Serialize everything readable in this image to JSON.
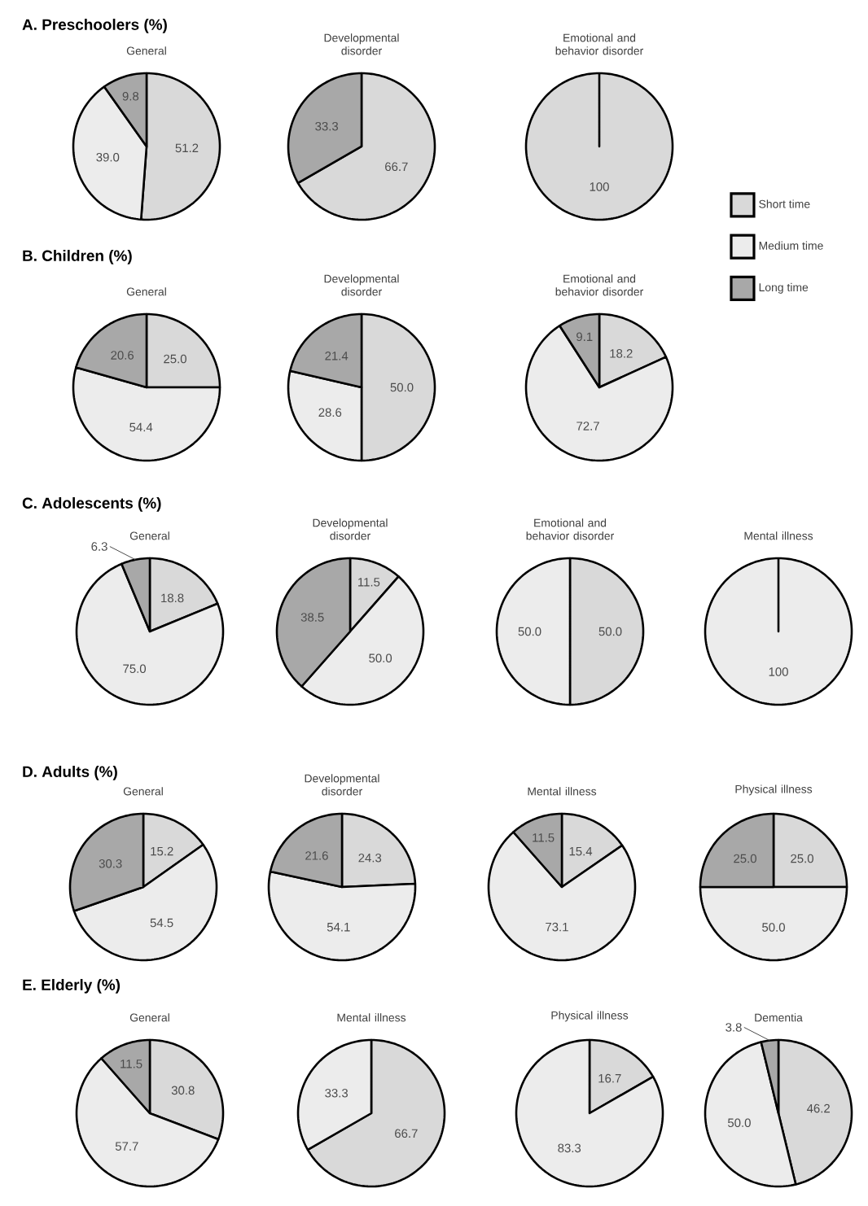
{
  "chart_data": [
    {
      "type": "pie",
      "title": "General",
      "annotations": [
        "A. Preschoolers (%)"
      ],
      "values": [
        51.2,
        39.0,
        9.8
      ],
      "colors": [
        "#d9d9d9",
        "#ececec",
        "#a8a8a8"
      ],
      "value_labels": [
        "51.2",
        "39.0",
        "9.8"
      ]
    },
    {
      "type": "pie",
      "title": "Developmental disorder",
      "values": [
        66.7,
        0,
        33.3
      ],
      "colors": [
        "#d9d9d9",
        "#ececec",
        "#a8a8a8"
      ],
      "value_labels": [
        "66.7",
        null,
        "33.3"
      ]
    },
    {
      "type": "pie",
      "title": "Emotional and behavior disorder",
      "categories": [
        "Short time",
        "Medium time",
        "Long time"
      ],
      "legend": "right",
      "values": [
        100,
        0,
        0
      ],
      "colors": [
        "#d9d9d9",
        "#ececec",
        "#a8a8a8"
      ],
      "value_labels": [
        "100",
        null,
        null
      ]
    },
    {
      "type": "pie",
      "title": "General",
      "annotations": [
        "B. Children (%)"
      ],
      "values": [
        25.0,
        54.4,
        20.6
      ],
      "colors": [
        "#d9d9d9",
        "#ececec",
        "#a8a8a8"
      ],
      "value_labels": [
        "25.0",
        "54.4",
        "20.6"
      ]
    },
    {
      "type": "pie",
      "title": "Developmental disorder",
      "values": [
        50.0,
        28.6,
        21.4
      ],
      "colors": [
        "#d9d9d9",
        "#ececec",
        "#a8a8a8"
      ],
      "value_labels": [
        "50.0",
        "28.6",
        "21.4"
      ]
    },
    {
      "type": "pie",
      "title": "Emotional and behavior disorder",
      "values": [
        18.2,
        72.7,
        9.1
      ],
      "colors": [
        "#d9d9d9",
        "#ececec",
        "#a8a8a8"
      ],
      "value_labels": [
        "18.2",
        "72.7",
        "9.1"
      ]
    },
    {
      "type": "pie",
      "title": "General",
      "annotations": [
        "C. Adolescents (%)"
      ],
      "values": [
        18.8,
        75.0,
        6.3
      ],
      "colors": [
        "#d9d9d9",
        "#ececec",
        "#a8a8a8"
      ],
      "value_labels": [
        "18.8",
        "75.0",
        "6.3"
      ]
    },
    {
      "type": "pie",
      "title": "Developmental disorder",
      "values": [
        11.5,
        50.0,
        38.5
      ],
      "colors": [
        "#d9d9d9",
        "#ececec",
        "#a8a8a8"
      ],
      "value_labels": [
        "11.5",
        "50.0",
        "38.5"
      ]
    },
    {
      "type": "pie",
      "title": "Emotional and behavior disorder",
      "values": [
        50.0,
        50.0,
        0
      ],
      "colors": [
        "#d9d9d9",
        "#ececec",
        "#a8a8a8"
      ],
      "value_labels": [
        "50.0",
        "50.0",
        null
      ]
    },
    {
      "type": "pie",
      "title": "Mental illness",
      "values": [
        0,
        100,
        0
      ],
      "colors": [
        "#d9d9d9",
        "#ececec",
        "#a8a8a8"
      ],
      "value_labels": [
        null,
        "100",
        null
      ]
    },
    {
      "type": "pie",
      "title": "General",
      "annotations": [
        "D. Adults (%)"
      ],
      "values": [
        15.2,
        54.5,
        30.3
      ],
      "colors": [
        "#d9d9d9",
        "#ececec",
        "#a8a8a8"
      ],
      "value_labels": [
        "15.2",
        "54.5",
        "30.3"
      ]
    },
    {
      "type": "pie",
      "title": "Developmental disorder",
      "values": [
        24.3,
        54.1,
        21.6
      ],
      "colors": [
        "#d9d9d9",
        "#ececec",
        "#a8a8a8"
      ],
      "value_labels": [
        "24.3",
        "54.1",
        "21.6"
      ]
    },
    {
      "type": "pie",
      "title": "Mental illness",
      "values": [
        15.4,
        73.1,
        11.5
      ],
      "colors": [
        "#d9d9d9",
        "#ececec",
        "#a8a8a8"
      ],
      "value_labels": [
        "15.4",
        "73.1",
        "11.5"
      ]
    },
    {
      "type": "pie",
      "title": "Physical illness",
      "values": [
        25.0,
        50.0,
        25.0
      ],
      "colors": [
        "#d9d9d9",
        "#ececec",
        "#a8a8a8"
      ],
      "value_labels": [
        "25.0",
        "50.0",
        "25.0"
      ]
    },
    {
      "type": "pie",
      "title": "General",
      "annotations": [
        "E. Elderly (%)"
      ],
      "values": [
        30.8,
        57.7,
        11.5
      ],
      "colors": [
        "#d9d9d9",
        "#ececec",
        "#a8a8a8"
      ],
      "value_labels": [
        "30.8",
        "57.7",
        "11.5"
      ]
    },
    {
      "type": "pie",
      "title": "Mental illness",
      "values": [
        66.7,
        33.3,
        0
      ],
      "colors": [
        "#d9d9d9",
        "#ececec",
        "#a8a8a8"
      ],
      "value_labels": [
        "66.7",
        "33.3",
        null
      ]
    },
    {
      "type": "pie",
      "title": "Physical illness",
      "values": [
        16.7,
        83.3,
        0
      ],
      "colors": [
        "#d9d9d9",
        "#ececec",
        "#a8a8a8"
      ],
      "value_labels": [
        "16.7",
        "83.3",
        null
      ]
    },
    {
      "type": "pie",
      "title": "Dementia",
      "values": [
        46.2,
        50.0,
        3.8
      ],
      "colors": [
        "#d9d9d9",
        "#ececec",
        "#a8a8a8"
      ],
      "value_labels": [
        "46.2",
        "50.0",
        "3.8"
      ]
    }
  ]
}
